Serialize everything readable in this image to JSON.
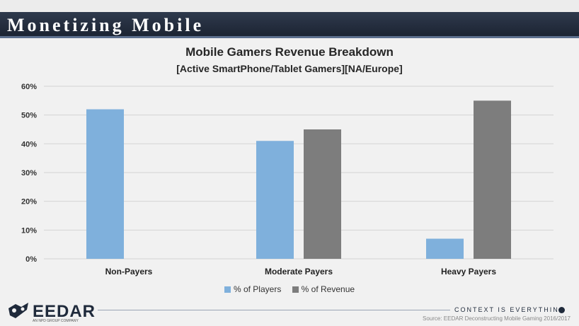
{
  "header": {
    "title": "Monetizing Mobile"
  },
  "chart_data": {
    "type": "bar",
    "title": "Mobile Gamers Revenue Breakdown",
    "subtitle": "[Active SmartPhone/Tablet Gamers][NA/Europe]",
    "categories": [
      "Non-Payers",
      "Moderate Payers",
      "Heavy Payers"
    ],
    "series": [
      {
        "name": "% of Players",
        "values": [
          52,
          41,
          7
        ],
        "color": "#7fb0dc"
      },
      {
        "name": "% of Revenue",
        "values": [
          0,
          45,
          55
        ],
        "color": "#7d7d7d"
      }
    ],
    "yticks": [
      "0%",
      "10%",
      "20%",
      "30%",
      "40%",
      "50%",
      "60%"
    ],
    "ylim": [
      0,
      60
    ],
    "grid": true,
    "legend_position": "bottom"
  },
  "footer": {
    "logo_text": "EEDAR",
    "logo_subtext": "AN NPD GROUP COMPANY",
    "tagline": "CONTEXT IS EVERYTHING",
    "source": "Source: EEDAR Deconstructing Mobile Gaming 2016/2017"
  }
}
